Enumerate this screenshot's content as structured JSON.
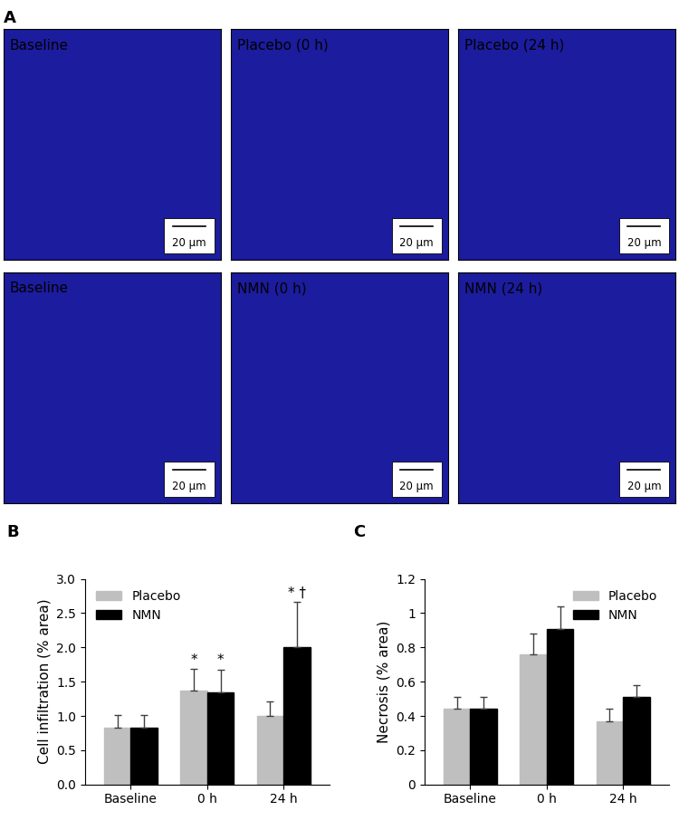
{
  "panel_a": {
    "label": "A",
    "images": [
      {
        "title": "Baseline",
        "scale_bar": "20 µm"
      },
      {
        "title": "Placebo (0 h)",
        "scale_bar": "20 µm"
      },
      {
        "title": "Placebo (24 h)",
        "scale_bar": "20 µm"
      },
      {
        "title": "Baseline",
        "scale_bar": "20 µm"
      },
      {
        "title": "NMN (0 h)",
        "scale_bar": "20 µm"
      },
      {
        "title": "NMN (24 h)",
        "scale_bar": "20 µm"
      }
    ]
  },
  "chart_data": [
    {
      "type": "bar",
      "panel": "B",
      "y_label": "Cell infiltration (% area)",
      "categories": [
        "Baseline",
        "0 h",
        "24 h"
      ],
      "series": [
        {
          "name": "Placebo",
          "color": "#bfbfbf",
          "values": [
            0.83,
            1.37,
            1.0
          ],
          "error": [
            0.18,
            0.32,
            0.21
          ]
        },
        {
          "name": "NMN",
          "color": "#000000",
          "values": [
            0.83,
            1.34,
            2.01
          ],
          "error": [
            0.18,
            0.34,
            0.65
          ]
        }
      ],
      "annotations": [
        {
          "text": "*",
          "series": "Placebo",
          "category": "0 h"
        },
        {
          "text": "*",
          "series": "NMN",
          "category": "0 h"
        },
        {
          "text": "* †",
          "series": "NMN",
          "category": "24 h"
        }
      ],
      "ylim": [
        0,
        3
      ],
      "yticks": [
        {
          "value": 0,
          "label": "0.0"
        },
        {
          "value": 0.5,
          "label": "0.5"
        },
        {
          "value": 1,
          "label": "1.0"
        },
        {
          "value": 1.5,
          "label": "1.5"
        },
        {
          "value": 2,
          "label": "2.0"
        },
        {
          "value": 2.5,
          "label": "2.5"
        },
        {
          "value": 3,
          "label": "3.0"
        }
      ],
      "legend": "upper left",
      "grid": false
    },
    {
      "type": "bar",
      "panel": "C",
      "y_label": "Necrosis (% area)",
      "categories": [
        "Baseline",
        "0 h",
        "24 h"
      ],
      "series": [
        {
          "name": "Placebo",
          "color": "#bfbfbf",
          "values": [
            0.44,
            0.76,
            0.37
          ],
          "error": [
            0.07,
            0.12,
            0.07
          ]
        },
        {
          "name": "NMN",
          "color": "#000000",
          "values": [
            0.44,
            0.91,
            0.51
          ],
          "error": [
            0.07,
            0.13,
            0.07
          ]
        }
      ],
      "ylim": [
        0,
        1.2
      ],
      "yticks": [
        0,
        0.2,
        0.4,
        0.6,
        0.8,
        1,
        1.2
      ],
      "legend": "upper right",
      "grid": false
    }
  ]
}
